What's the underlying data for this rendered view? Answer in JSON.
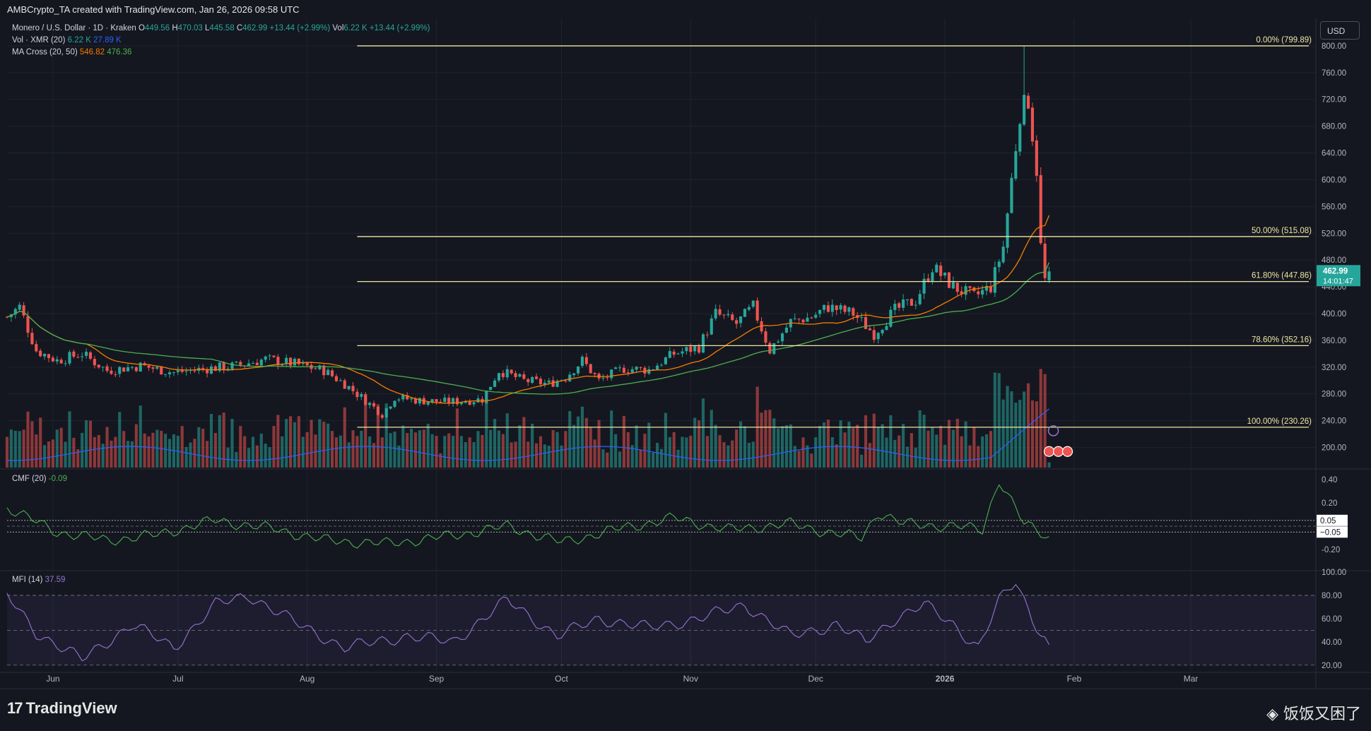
{
  "caption": "AMBCrypto_TA created with TradingView.com, Jan 26, 2026 09:58 UTC",
  "currency_button": "USD",
  "legend": {
    "symbol": "Monero / U.S. Dollar · 1D · Kraken",
    "o_label": "O",
    "o": "449.56",
    "h_label": "H",
    "h": "470.03",
    "l_label": "L",
    "l": "445.58",
    "c_label": "C",
    "c": "462.99",
    "change": "+13.44 (+2.99%)",
    "vol_label": "Vol",
    "vol": "6.22 K",
    "vol_change": "+13.44 (+2.99%)",
    "vol_xmr_label": "Vol · XMR (20)",
    "vol_xmr_1": "6.22 K",
    "vol_xmr_2": "27.89 K",
    "ma_label": "MA Cross (20, 50)",
    "ma_1": "546.82",
    "ma_2": "476.36",
    "cmf_label": "CMF (20)",
    "cmf_value": "-0.09",
    "mfi_label": "MFI (14)",
    "mfi_value": "37.59"
  },
  "price_badge": {
    "price": "462.99",
    "countdown": "14:01:47"
  },
  "colors": {
    "up": "#26a69a",
    "down": "#ef5350",
    "fib": "#efe6a1",
    "ma_fast": "#f57c00",
    "ma_slow": "#4caf50",
    "vol_ma": "#2962ff",
    "cmf": "#4caf50",
    "mfi": "#9575cd"
  },
  "footer": {
    "brand": "TradingView",
    "watermark": "◈ 饭饭又困了"
  },
  "chart_data": [
    {
      "type": "candlestick",
      "title": "Monero / U.S. Dollar · 1D · Kraken",
      "x_axis_labels": [
        "Jun",
        "Jul",
        "Aug",
        "Sep",
        "Oct",
        "Nov",
        "Dec",
        "2026",
        "Feb",
        "Mar"
      ],
      "y_ticks": [
        200,
        240,
        280,
        320,
        360,
        400,
        440,
        480,
        520,
        560,
        600,
        640,
        680,
        720,
        760,
        800
      ],
      "ylim": [
        170,
        822
      ],
      "x_range": [
        "2025-05-21",
        "2026-03-31"
      ],
      "price_path": [
        [
          "2025-05-21",
          395
        ],
        [
          "2025-05-24",
          410
        ],
        [
          "2025-05-28",
          345
        ],
        [
          "2025-06-02",
          330
        ],
        [
          "2025-06-08",
          340
        ],
        [
          "2025-06-14",
          315
        ],
        [
          "2025-06-22",
          322
        ],
        [
          "2025-06-30",
          312
        ],
        [
          "2025-07-08",
          318
        ],
        [
          "2025-07-15",
          322
        ],
        [
          "2025-07-22",
          332
        ],
        [
          "2025-07-29",
          325
        ],
        [
          "2025-08-05",
          315
        ],
        [
          "2025-08-10",
          295
        ],
        [
          "2025-08-15",
          270
        ],
        [
          "2025-08-19",
          250
        ],
        [
          "2025-08-22",
          275
        ],
        [
          "2025-08-28",
          270
        ],
        [
          "2025-09-04",
          268
        ],
        [
          "2025-09-12",
          272
        ],
        [
          "2025-09-16",
          315
        ],
        [
          "2025-09-22",
          300
        ],
        [
          "2025-09-28",
          295
        ],
        [
          "2025-10-02",
          305
        ],
        [
          "2025-10-06",
          330
        ],
        [
          "2025-10-10",
          300
        ],
        [
          "2025-10-16",
          318
        ],
        [
          "2025-10-22",
          316
        ],
        [
          "2025-10-28",
          340
        ],
        [
          "2025-11-03",
          350
        ],
        [
          "2025-11-07",
          400
        ],
        [
          "2025-11-12",
          385
        ],
        [
          "2025-11-16",
          410
        ],
        [
          "2025-11-20",
          345
        ],
        [
          "2025-11-25",
          388
        ],
        [
          "2025-11-30",
          395
        ],
        [
          "2025-12-04",
          410
        ],
        [
          "2025-12-10",
          400
        ],
        [
          "2025-12-15",
          370
        ],
        [
          "2025-12-20",
          405
        ],
        [
          "2025-12-25",
          420
        ],
        [
          "2025-12-29",
          470
        ],
        [
          "2026-01-03",
          440
        ],
        [
          "2026-01-08",
          425
        ],
        [
          "2026-01-12",
          440
        ],
        [
          "2026-01-15",
          500
        ],
        [
          "2026-01-19",
          700
        ],
        [
          "2026-01-21",
          720
        ],
        [
          "2026-01-23",
          615
        ],
        [
          "2026-01-24",
          500
        ],
        [
          "2026-01-25",
          449.56
        ],
        [
          "2026-01-26",
          462.99
        ]
      ],
      "last_candle": {
        "date": "2026-01-26",
        "open": 449.56,
        "high": 470.03,
        "low": 445.58,
        "close": 462.99
      },
      "all_time_high_in_view": 799.89,
      "fibonacci": [
        {
          "label": "0.00% (799.89)",
          "value": 799.89
        },
        {
          "label": "50.00% (515.08)",
          "value": 515.08
        },
        {
          "label": "61.80% (447.86)",
          "value": 447.86
        },
        {
          "label": "78.60% (352.16)",
          "value": 352.16
        },
        {
          "label": "100.00% (230.26)",
          "value": 230.26
        }
      ],
      "fib_start_date": "2025-08-13",
      "ma_cross": {
        "fast": 546.82,
        "slow": 476.36
      },
      "volume": {
        "last": "6.22 K",
        "ma": "27.89 K"
      }
    },
    {
      "type": "line",
      "title": "CMF (20)",
      "y_ticks": [
        0.4,
        0.2,
        -0.2
      ],
      "ylim": [
        -0.37,
        0.48
      ],
      "level_lines": [
        0.05,
        -0.05
      ],
      "level_labels": [
        "0.05",
        "−0.05"
      ],
      "last_value": -0.09,
      "path": [
        [
          "2025-05-21",
          0.16
        ],
        [
          "2025-06-02",
          -0.05
        ],
        [
          "2025-06-14",
          -0.12
        ],
        [
          "2025-06-25",
          -0.08
        ],
        [
          "2025-07-10",
          0.05
        ],
        [
          "2025-07-25",
          -0.03
        ],
        [
          "2025-08-05",
          -0.12
        ],
        [
          "2025-08-20",
          -0.15
        ],
        [
          "2025-09-05",
          -0.08
        ],
        [
          "2025-09-18",
          0.0
        ],
        [
          "2025-10-01",
          -0.14
        ],
        [
          "2025-10-15",
          -0.02
        ],
        [
          "2025-10-28",
          0.07
        ],
        [
          "2025-11-10",
          -0.03
        ],
        [
          "2025-11-25",
          0.02
        ],
        [
          "2025-12-05",
          -0.06
        ],
        [
          "2025-12-12",
          -0.1
        ],
        [
          "2025-12-16",
          0.12
        ],
        [
          "2025-12-22",
          0.02
        ],
        [
          "2026-01-03",
          0.0
        ],
        [
          "2026-01-10",
          -0.03
        ],
        [
          "2026-01-14",
          0.4
        ],
        [
          "2026-01-20",
          0.02
        ],
        [
          "2026-01-26",
          -0.09
        ]
      ]
    },
    {
      "type": "area",
      "title": "MFI (14)",
      "y_ticks": [
        100,
        80,
        60,
        40,
        20
      ],
      "ylim": [
        15,
        100
      ],
      "band": [
        20,
        80
      ],
      "mid_line": 50,
      "last_value": 37.59,
      "path": [
        [
          "2025-05-21",
          80
        ],
        [
          "2025-05-28",
          48
        ],
        [
          "2025-06-08",
          25
        ],
        [
          "2025-06-20",
          55
        ],
        [
          "2025-06-30",
          35
        ],
        [
          "2025-07-10",
          72
        ],
        [
          "2025-07-18",
          80
        ],
        [
          "2025-07-30",
          55
        ],
        [
          "2025-08-10",
          35
        ],
        [
          "2025-08-25",
          45
        ],
        [
          "2025-09-05",
          40
        ],
        [
          "2025-09-18",
          76
        ],
        [
          "2025-09-30",
          45
        ],
        [
          "2025-10-10",
          60
        ],
        [
          "2025-10-22",
          52
        ],
        [
          "2025-11-03",
          60
        ],
        [
          "2025-11-14",
          72
        ],
        [
          "2025-11-25",
          45
        ],
        [
          "2025-12-06",
          55
        ],
        [
          "2025-12-13",
          40
        ],
        [
          "2025-12-20",
          60
        ],
        [
          "2025-12-27",
          72
        ],
        [
          "2026-01-03",
          55
        ],
        [
          "2026-01-09",
          35
        ],
        [
          "2026-01-14",
          75
        ],
        [
          "2026-01-18",
          92
        ],
        [
          "2026-01-22",
          60
        ],
        [
          "2026-01-26",
          37.59
        ]
      ]
    }
  ]
}
